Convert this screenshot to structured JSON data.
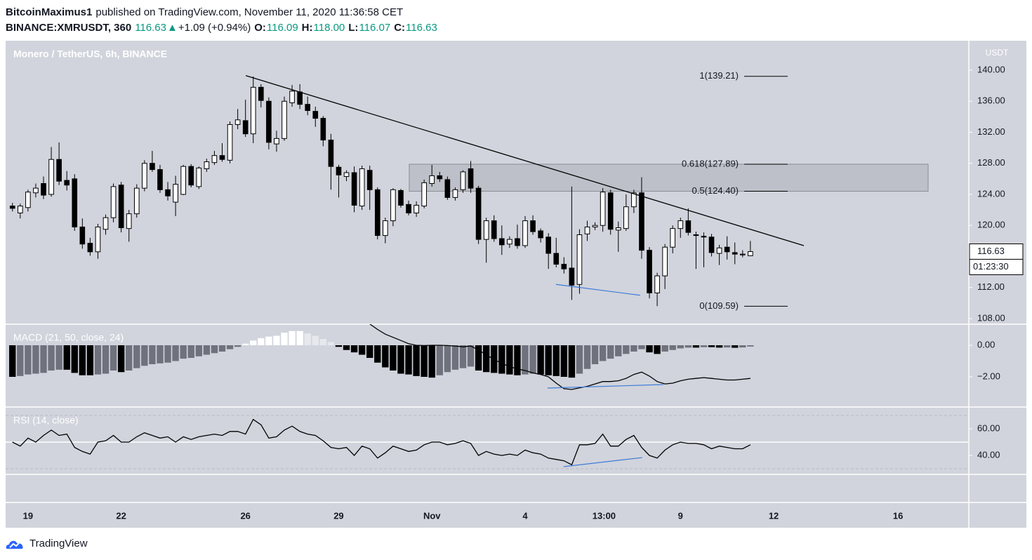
{
  "header": {
    "publisher": "BitcoinMaximus1",
    "published": "published on TradingView.com, November 11, 2020 11:36:58 CET",
    "symbol": "BINANCE:XMRUSDT, 360",
    "last": "116.63",
    "arrow": "▲",
    "change": "+1.09 (+0.94%)",
    "o_label": "O:",
    "o": "116.09",
    "h_label": "H:",
    "h": "118.00",
    "l_label": "L:",
    "l": "116.07",
    "c_label": "C:",
    "c": "116.63",
    "color": "#089981"
  },
  "footer": {
    "brand": "TradingView"
  },
  "chart_data": [
    {
      "type": "candlestick",
      "title": "Monero / TetherUS, 6h, BINANCE",
      "y_label": "USDT",
      "x": [
        -0.5,
        -0.25,
        0,
        0.25,
        0.5,
        0.75,
        1,
        1.25,
        1.5,
        1.75,
        2,
        2.25,
        2.5,
        2.75,
        3,
        3.25,
        3.5,
        3.75,
        4,
        4.25,
        4.5,
        4.75,
        5,
        5.25,
        5.5,
        5.75,
        6,
        6.25,
        6.5,
        6.75,
        7,
        7.25,
        7.5,
        7.75,
        8,
        8.25,
        8.5,
        8.75,
        9,
        9.25,
        9.5,
        9.75,
        10,
        10.25,
        10.5,
        10.75,
        11,
        11.25,
        11.5,
        11.75,
        12,
        12.25,
        12.5,
        12.75,
        13,
        13.25,
        13.5,
        13.75,
        14,
        14.25,
        14.5,
        14.75,
        15,
        15.25,
        15.5,
        15.75,
        16,
        16.25,
        16.5,
        16.75,
        17,
        17.25,
        17.5,
        17.75,
        18,
        18.25,
        18.5,
        18.75,
        19,
        19.25,
        19.5,
        19.75,
        20,
        20.25,
        20.5,
        20.75,
        21,
        21.25,
        21.5,
        21.75,
        22,
        22.25,
        22.5,
        22.75,
        23,
        23.25
      ],
      "values": [
        [
          122.5,
          122.9,
          121.8,
          122.2
        ],
        [
          121.6,
          122.8,
          120.9,
          122.5
        ],
        [
          122.3,
          124.6,
          121.8,
          124.3
        ],
        [
          124.2,
          125.4,
          123.6,
          124.8
        ],
        [
          125.4,
          126.3,
          123.4,
          123.9
        ],
        [
          124.0,
          130.1,
          123.7,
          128.5
        ],
        [
          128.5,
          130.7,
          125.2,
          125.7
        ],
        [
          125.8,
          127.0,
          124.5,
          125.2
        ],
        [
          126.0,
          126.6,
          119.3,
          119.8
        ],
        [
          119.8,
          120.9,
          117.0,
          117.6
        ],
        [
          117.7,
          118.4,
          116.1,
          116.6
        ],
        [
          116.6,
          120.2,
          115.7,
          119.8
        ],
        [
          119.5,
          121.4,
          118.8,
          121.0
        ],
        [
          121.0,
          125.4,
          120.4,
          125.0
        ],
        [
          125.2,
          125.6,
          119.1,
          119.7
        ],
        [
          119.6,
          122.0,
          117.9,
          121.5
        ],
        [
          121.5,
          125.3,
          121.0,
          124.8
        ],
        [
          124.8,
          128.4,
          124.4,
          128.0
        ],
        [
          128.0,
          129.6,
          126.9,
          127.2
        ],
        [
          127.2,
          127.8,
          124.2,
          124.6
        ],
        [
          124.6,
          125.6,
          123.2,
          123.8
        ],
        [
          123.0,
          126.4,
          121.2,
          125.3
        ],
        [
          124.0,
          127.8,
          123.9,
          127.6
        ],
        [
          127.6,
          127.9,
          124.9,
          125.2
        ],
        [
          125.0,
          127.6,
          124.7,
          127.4
        ],
        [
          127.3,
          128.6,
          126.9,
          128.2
        ],
        [
          128.1,
          129.6,
          127.8,
          129.0
        ],
        [
          129.0,
          130.6,
          128.2,
          128.5
        ],
        [
          128.4,
          133.4,
          128.0,
          133.0
        ],
        [
          133.0,
          135.0,
          132.4,
          133.6
        ],
        [
          133.5,
          136.2,
          131.4,
          131.8
        ],
        [
          131.8,
          139.2,
          130.6,
          137.8
        ],
        [
          137.8,
          138.2,
          135.2,
          136.1
        ],
        [
          136.0,
          136.5,
          129.8,
          130.7
        ],
        [
          130.5,
          132.2,
          129.5,
          131.2
        ],
        [
          131.2,
          136.6,
          130.9,
          136.0
        ],
        [
          135.8,
          138.1,
          135.3,
          137.3
        ],
        [
          137.2,
          138.2,
          135.0,
          135.6
        ],
        [
          135.6,
          136.6,
          134.2,
          134.8
        ],
        [
          134.7,
          135.3,
          132.7,
          133.8
        ],
        [
          133.8,
          134.1,
          130.2,
          131.0
        ],
        [
          131.0,
          131.8,
          124.6,
          127.6
        ],
        [
          127.5,
          127.8,
          123.6,
          126.5
        ],
        [
          126.3,
          127.1,
          125.7,
          126.8
        ],
        [
          126.8,
          127.6,
          121.7,
          122.6
        ],
        [
          122.5,
          127.7,
          122.0,
          127.3
        ],
        [
          127.1,
          127.7,
          122.0,
          124.6
        ],
        [
          124.6,
          124.9,
          118.2,
          118.7
        ],
        [
          118.7,
          121.0,
          117.7,
          120.6
        ],
        [
          120.6,
          124.8,
          119.9,
          124.6
        ],
        [
          124.5,
          124.7,
          122.3,
          122.6
        ],
        [
          122.7,
          123.2,
          121.3,
          121.6
        ],
        [
          121.6,
          123.1,
          121.1,
          122.6
        ],
        [
          122.5,
          125.9,
          122.2,
          125.5
        ],
        [
          125.4,
          127.8,
          125.0,
          126.4
        ],
        [
          126.4,
          126.9,
          125.6,
          126.0
        ],
        [
          125.9,
          126.3,
          123.3,
          123.6
        ],
        [
          123.6,
          124.9,
          123.2,
          124.6
        ],
        [
          124.6,
          127.1,
          124.2,
          126.9
        ],
        [
          127.3,
          128.3,
          124.2,
          124.8
        ],
        [
          124.8,
          125.1,
          117.6,
          118.2
        ],
        [
          118.2,
          121.0,
          115.2,
          120.6
        ],
        [
          120.6,
          121.3,
          117.9,
          118.3
        ],
        [
          118.3,
          120.0,
          116.2,
          117.5
        ],
        [
          117.6,
          118.6,
          117.1,
          118.2
        ],
        [
          118.3,
          120.1,
          117.0,
          117.4
        ],
        [
          117.4,
          121.2,
          117.1,
          120.6
        ],
        [
          120.6,
          121.3,
          118.8,
          119.2
        ],
        [
          119.3,
          119.6,
          117.8,
          118.4
        ],
        [
          118.5,
          119.0,
          114.4,
          116.4
        ],
        [
          116.4,
          118.4,
          114.6,
          115.0
        ],
        [
          115.0,
          115.9,
          113.8,
          114.4
        ],
        [
          114.5,
          125.0,
          110.4,
          112.3
        ],
        [
          112.4,
          119.5,
          111.2,
          118.8
        ],
        [
          118.9,
          120.6,
          118.0,
          119.8
        ],
        [
          119.8,
          120.4,
          119.4,
          120.0
        ],
        [
          120.0,
          124.8,
          119.2,
          124.3
        ],
        [
          124.2,
          124.6,
          118.8,
          119.5
        ],
        [
          119.4,
          120.5,
          116.6,
          119.7
        ],
        [
          119.6,
          124.0,
          119.3,
          122.4
        ],
        [
          122.4,
          124.6,
          121.6,
          124.2
        ],
        [
          124.2,
          126.2,
          115.7,
          116.8
        ],
        [
          116.8,
          117.2,
          110.6,
          111.3
        ],
        [
          111.3,
          113.9,
          109.6,
          113.5
        ],
        [
          113.5,
          117.6,
          111.8,
          117.2
        ],
        [
          117.2,
          120.0,
          116.4,
          119.6
        ],
        [
          119.6,
          121.0,
          118.4,
          120.6
        ],
        [
          120.6,
          122.2,
          118.7,
          119.1
        ],
        [
          118.8,
          119.2,
          114.4,
          118.7
        ],
        [
          118.6,
          119.1,
          114.6,
          118.5
        ],
        [
          118.5,
          118.9,
          116.0,
          116.5
        ],
        [
          116.4,
          117.5,
          114.9,
          117.1
        ],
        [
          117.2,
          118.6,
          115.6,
          116.6
        ],
        [
          116.5,
          117.8,
          115.0,
          116.3
        ],
        [
          116.2,
          116.8,
          115.9,
          116.3
        ],
        [
          116.09,
          118.0,
          116.07,
          116.63
        ]
      ],
      "colors": {
        "up": "#ffffff",
        "down": "#000000",
        "border": "#000000"
      },
      "xlim": [
        -0.72,
        30.28
      ],
      "xticks": [
        {
          "value": 0,
          "label": "19"
        },
        {
          "value": 3,
          "label": "22"
        },
        {
          "value": 7,
          "label": "26"
        },
        {
          "value": 10,
          "label": "29"
        },
        {
          "value": 13,
          "label": "Nov"
        },
        {
          "value": 16,
          "label": "4"
        },
        {
          "value": 18.54,
          "label": "13:00"
        },
        {
          "value": 21,
          "label": "9"
        },
        {
          "value": 24,
          "label": "12"
        },
        {
          "value": 28,
          "label": "16"
        }
      ],
      "ylim": [
        107.27,
        143.8
      ],
      "yticks": [
        {
          "value": 108,
          "label": "108.00"
        },
        {
          "value": 112,
          "label": "112.00"
        },
        {
          "value": 116,
          "label": "116.00"
        },
        {
          "value": 120,
          "label": "120.00"
        },
        {
          "value": 124,
          "label": "124.00"
        },
        {
          "value": 128,
          "label": "128.00"
        },
        {
          "value": 132,
          "label": "132.00"
        },
        {
          "value": 136,
          "label": "136.00"
        },
        {
          "value": 140,
          "label": "140.00"
        }
      ],
      "last_price": {
        "value": 116.63,
        "countdown": "01:23:30"
      },
      "zone": {
        "x": [
          12.27,
          28.97
        ],
        "y": [
          124.4,
          127.89
        ]
      },
      "trendline": {
        "x": [
          7.01,
          24.97
        ],
        "y": [
          139.3,
          117.4
        ]
      },
      "divergence": {
        "x": [
          16.99,
          19.7
        ],
        "y": [
          112.4,
          111.0
        ],
        "color": "#3d7bd9"
      },
      "fib_x": [
        23.05,
        24.45
      ],
      "fib_levels": [
        {
          "label": "1(139.21)",
          "value": 139.21
        },
        {
          "label": "0.618(127.89)",
          "value": 127.89
        },
        {
          "label": "0.5(124.40)",
          "value": 124.4
        },
        {
          "label": "0(109.59)",
          "value": 109.59
        }
      ]
    },
    {
      "type": "macd",
      "title": "MACD (21, 50, close, 24)",
      "histogram": [
        -2.0,
        -1.95,
        -1.85,
        -1.8,
        -1.75,
        -1.6,
        -1.55,
        -1.55,
        -1.75,
        -1.9,
        -1.9,
        -1.85,
        -1.8,
        -1.6,
        -1.7,
        -1.6,
        -1.45,
        -1.3,
        -1.2,
        -1.15,
        -1.1,
        -1.0,
        -0.85,
        -0.8,
        -0.7,
        -0.6,
        -0.5,
        -0.4,
        -0.25,
        -0.1,
        0.1,
        0.3,
        0.45,
        0.55,
        0.6,
        0.8,
        0.9,
        0.9,
        0.75,
        0.6,
        0.4,
        0.2,
        -0.1,
        -0.3,
        -0.45,
        -0.6,
        -0.8,
        -1.1,
        -1.4,
        -1.6,
        -1.8,
        -1.85,
        -1.95,
        -2.0,
        -2.05,
        -1.9,
        -1.7,
        -1.55,
        -1.45,
        -1.35,
        -1.6,
        -1.7,
        -1.75,
        -1.8,
        -1.85,
        -1.9,
        -1.85,
        -1.8,
        -1.85,
        -1.9,
        -1.95,
        -2.0,
        -2.05,
        -1.8,
        -1.5,
        -1.2,
        -1.0,
        -0.85,
        -0.7,
        -0.55,
        -0.4,
        -0.25,
        -0.45,
        -0.55,
        -0.4,
        -0.3,
        -0.2,
        -0.15,
        -0.15,
        -0.12,
        -0.12,
        -0.15,
        -0.14,
        -0.16,
        -0.14,
        -0.08
      ],
      "line": [
        null,
        null,
        null,
        null,
        null,
        null,
        null,
        null,
        null,
        null,
        null,
        null,
        null,
        null,
        null,
        null,
        null,
        null,
        null,
        null,
        null,
        null,
        null,
        null,
        null,
        null,
        null,
        null,
        null,
        null,
        null,
        null,
        null,
        null,
        null,
        null,
        null,
        null,
        null,
        null,
        null,
        null,
        null,
        null,
        null,
        null,
        1.35,
        1.0,
        0.7,
        0.5,
        0.3,
        0.1,
        0,
        -0.02,
        0,
        0,
        -0.02,
        -0.05,
        -0.1,
        -0.05,
        -0.3,
        -0.6,
        -0.9,
        -1.15,
        -1.35,
        -1.5,
        -1.6,
        -1.75,
        -1.85,
        -2.0,
        -2.4,
        -2.75,
        -2.8,
        -2.7,
        -2.6,
        -2.45,
        -2.3,
        -2.3,
        -2.25,
        -2.1,
        -1.85,
        -1.7,
        -1.95,
        -2.3,
        -2.45,
        -2.4,
        -2.25,
        -2.15,
        -2.1,
        -2.05,
        -2.1,
        -2.15,
        -2.2,
        -2.2,
        -2.15,
        -2.1
      ],
      "colors": {
        "neg_grow": "#000000",
        "neg_fall": "#6f727c",
        "pos_grow": "#ffffff",
        "pos_fall": "#e6e8ee",
        "line": "#000000"
      },
      "ylim": [
        -3.911,
        1.333
      ],
      "yticks": [
        {
          "value": 0,
          "label": "0.00"
        },
        {
          "value": -2,
          "label": "−2.00"
        }
      ],
      "divergence": {
        "x": [
          16.72,
          20.45
        ],
        "y": [
          -2.71,
          -2.49
        ],
        "color": "#3d7bd9"
      }
    },
    {
      "type": "rsi",
      "title": "RSI (14, close)",
      "values": [
        50,
        47,
        53,
        50,
        55,
        59,
        55,
        56,
        46,
        43,
        41,
        50,
        51,
        55,
        50,
        50,
        54,
        57,
        55,
        53,
        54,
        50,
        54,
        52,
        54,
        55,
        56,
        55,
        58,
        58,
        56,
        67,
        63,
        53,
        54,
        59,
        62,
        58,
        56,
        55,
        51,
        46,
        45,
        46,
        40,
        47,
        45,
        38,
        42,
        47,
        45,
        43,
        44,
        48,
        50,
        50,
        48,
        49,
        51,
        49,
        40,
        43,
        41,
        40,
        41,
        40,
        44,
        42,
        41,
        38,
        37,
        36,
        33,
        48,
        48,
        49,
        56,
        47,
        47,
        52,
        55,
        46,
        40,
        38,
        44,
        48,
        50,
        49,
        49,
        48,
        45,
        47,
        46,
        45,
        45,
        48
      ],
      "color": "#000000",
      "bands": [
        70,
        30
      ],
      "midline": 50,
      "ylim": [
        25.8,
        76.3
      ],
      "yticks": [
        {
          "value": 60,
          "label": "60.00"
        },
        {
          "value": 40,
          "label": "40.00"
        }
      ],
      "divergence": {
        "x": [
          17.24,
          19.77
        ],
        "y": [
          31.6,
          38.4
        ],
        "color": "#3d7bd9"
      }
    }
  ]
}
